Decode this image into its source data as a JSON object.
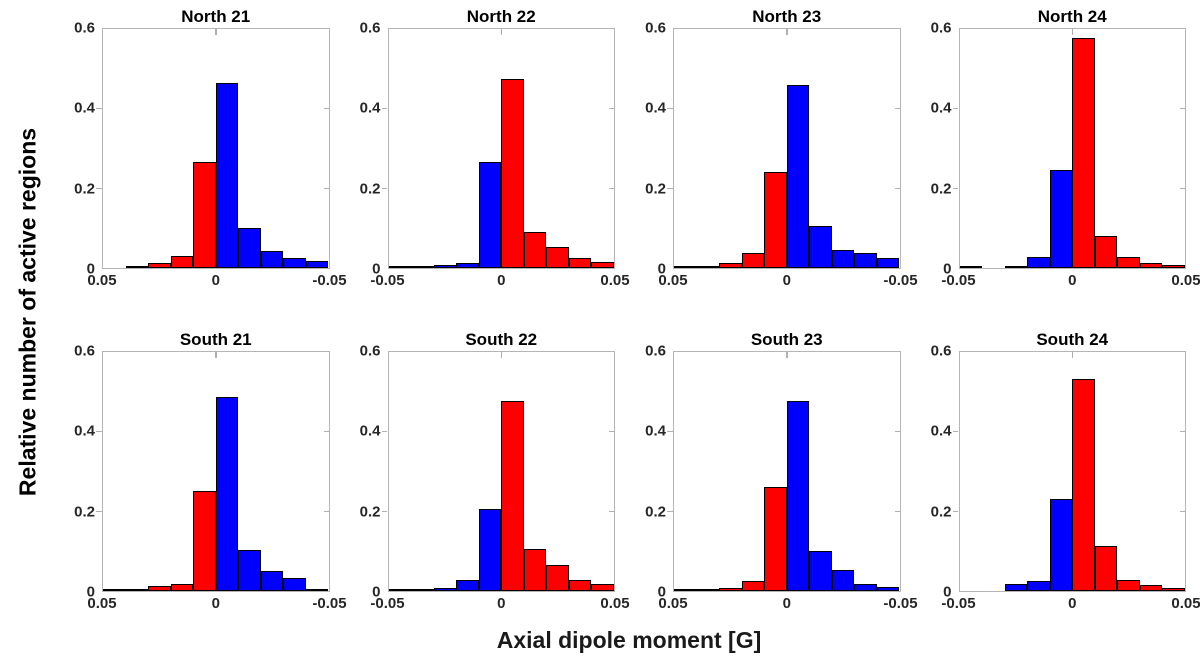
{
  "figure": {
    "ylabel": "Relative number of active regions",
    "xlabel": "Axial dipole moment [G]",
    "ylim": [
      0,
      0.6
    ],
    "yticks": [
      "0",
      "0.2",
      "0.4",
      "0.6"
    ],
    "bin_width": 0.01,
    "colors": {
      "red": "#ff0000",
      "blue": "#0000ff",
      "axis_box": "#b5b5b5",
      "tick_label": "#262626",
      "text": "#000000"
    }
  },
  "chart_data": [
    {
      "type": "bar",
      "title": "North 21",
      "x_direction": "reversed",
      "bin_edges_display": [
        0.05,
        0.04,
        0.03,
        0.02,
        0.01,
        0,
        -0.01,
        -0.02,
        -0.03,
        -0.04,
        -0.05
      ],
      "values": [
        0,
        0.005,
        0.012,
        0.03,
        0.265,
        0.465,
        0.1,
        0.042,
        0.025,
        0.018
      ],
      "colors": [
        "red",
        "red",
        "red",
        "red",
        "red",
        "blue",
        "blue",
        "blue",
        "blue",
        "blue"
      ],
      "xtick_labels": [
        "0.05",
        "0",
        "-0.05"
      ]
    },
    {
      "type": "bar",
      "title": "North 22",
      "x_direction": "normal",
      "bin_edges_display": [
        -0.05,
        -0.04,
        -0.03,
        -0.02,
        -0.01,
        0,
        0.01,
        0.02,
        0.03,
        0.04,
        0.05
      ],
      "values": [
        0.004,
        0.002,
        0.008,
        0.013,
        0.265,
        0.475,
        0.09,
        0.052,
        0.025,
        0.016
      ],
      "colors": [
        "blue",
        "blue",
        "blue",
        "blue",
        "blue",
        "red",
        "red",
        "red",
        "red",
        "red"
      ],
      "xtick_labels": [
        "-0.05",
        "0",
        "0.05"
      ]
    },
    {
      "type": "bar",
      "title": "North 23",
      "x_direction": "reversed",
      "bin_edges_display": [
        0.05,
        0.04,
        0.03,
        0.02,
        0.01,
        0,
        -0.01,
        -0.02,
        -0.03,
        -0.04,
        -0.05
      ],
      "values": [
        0.003,
        0.004,
        0.012,
        0.037,
        0.24,
        0.46,
        0.105,
        0.045,
        0.038,
        0.025
      ],
      "colors": [
        "red",
        "red",
        "red",
        "red",
        "red",
        "blue",
        "blue",
        "blue",
        "blue",
        "blue"
      ],
      "xtick_labels": [
        "0.05",
        "0",
        "-0.05"
      ]
    },
    {
      "type": "bar",
      "title": "North 24",
      "x_direction": "normal",
      "bin_edges_display": [
        -0.05,
        -0.04,
        -0.03,
        -0.02,
        -0.01,
        0,
        0.01,
        0.02,
        0.03,
        0.04,
        0.05
      ],
      "values": [
        0.004,
        0,
        0.005,
        0.028,
        0.245,
        0.578,
        0.08,
        0.028,
        0.012,
        0.008
      ],
      "colors": [
        "blue",
        "blue",
        "blue",
        "blue",
        "blue",
        "red",
        "red",
        "red",
        "red",
        "red"
      ],
      "xtick_labels": [
        "-0.05",
        "0",
        "0.05"
      ]
    },
    {
      "type": "bar",
      "title": "South 21",
      "x_direction": "reversed",
      "bin_edges_display": [
        0.05,
        0.04,
        0.03,
        0.02,
        0.01,
        0,
        -0.01,
        -0.02,
        -0.03,
        -0.04,
        -0.05
      ],
      "values": [
        0.002,
        0.003,
        0.013,
        0.018,
        0.25,
        0.487,
        0.103,
        0.05,
        0.033,
        0.005
      ],
      "colors": [
        "red",
        "red",
        "red",
        "red",
        "red",
        "blue",
        "blue",
        "blue",
        "blue",
        "blue"
      ],
      "xtick_labels": [
        "0.05",
        "0",
        "-0.05"
      ]
    },
    {
      "type": "bar",
      "title": "South 22",
      "x_direction": "normal",
      "bin_edges_display": [
        -0.05,
        -0.04,
        -0.03,
        -0.02,
        -0.01,
        0,
        0.01,
        0.02,
        0.03,
        0.04,
        0.05
      ],
      "values": [
        0.004,
        0.003,
        0.007,
        0.028,
        0.205,
        0.478,
        0.105,
        0.065,
        0.028,
        0.018
      ],
      "colors": [
        "blue",
        "blue",
        "blue",
        "blue",
        "blue",
        "red",
        "red",
        "red",
        "red",
        "red"
      ],
      "xtick_labels": [
        "-0.05",
        "0",
        "0.05"
      ]
    },
    {
      "type": "bar",
      "title": "South 23",
      "x_direction": "reversed",
      "bin_edges_display": [
        0.05,
        0.04,
        0.03,
        0.02,
        0.01,
        0,
        -0.01,
        -0.02,
        -0.03,
        -0.04,
        -0.05
      ],
      "values": [
        0.003,
        0.002,
        0.008,
        0.025,
        0.26,
        0.478,
        0.1,
        0.052,
        0.018,
        0.01
      ],
      "colors": [
        "red",
        "red",
        "red",
        "red",
        "red",
        "blue",
        "blue",
        "blue",
        "blue",
        "blue"
      ],
      "xtick_labels": [
        "0.05",
        "0",
        "-0.05"
      ]
    },
    {
      "type": "bar",
      "title": "South 24",
      "x_direction": "normal",
      "bin_edges_display": [
        -0.05,
        -0.04,
        -0.03,
        -0.02,
        -0.01,
        0,
        0.01,
        0.02,
        0.03,
        0.04,
        0.05
      ],
      "values": [
        0,
        0,
        0.018,
        0.025,
        0.232,
        0.533,
        0.113,
        0.028,
        0.015,
        0.008
      ],
      "colors": [
        "blue",
        "blue",
        "blue",
        "blue",
        "blue",
        "red",
        "red",
        "red",
        "red",
        "red"
      ],
      "xtick_labels": [
        "-0.05",
        "0",
        "0.05"
      ]
    }
  ]
}
